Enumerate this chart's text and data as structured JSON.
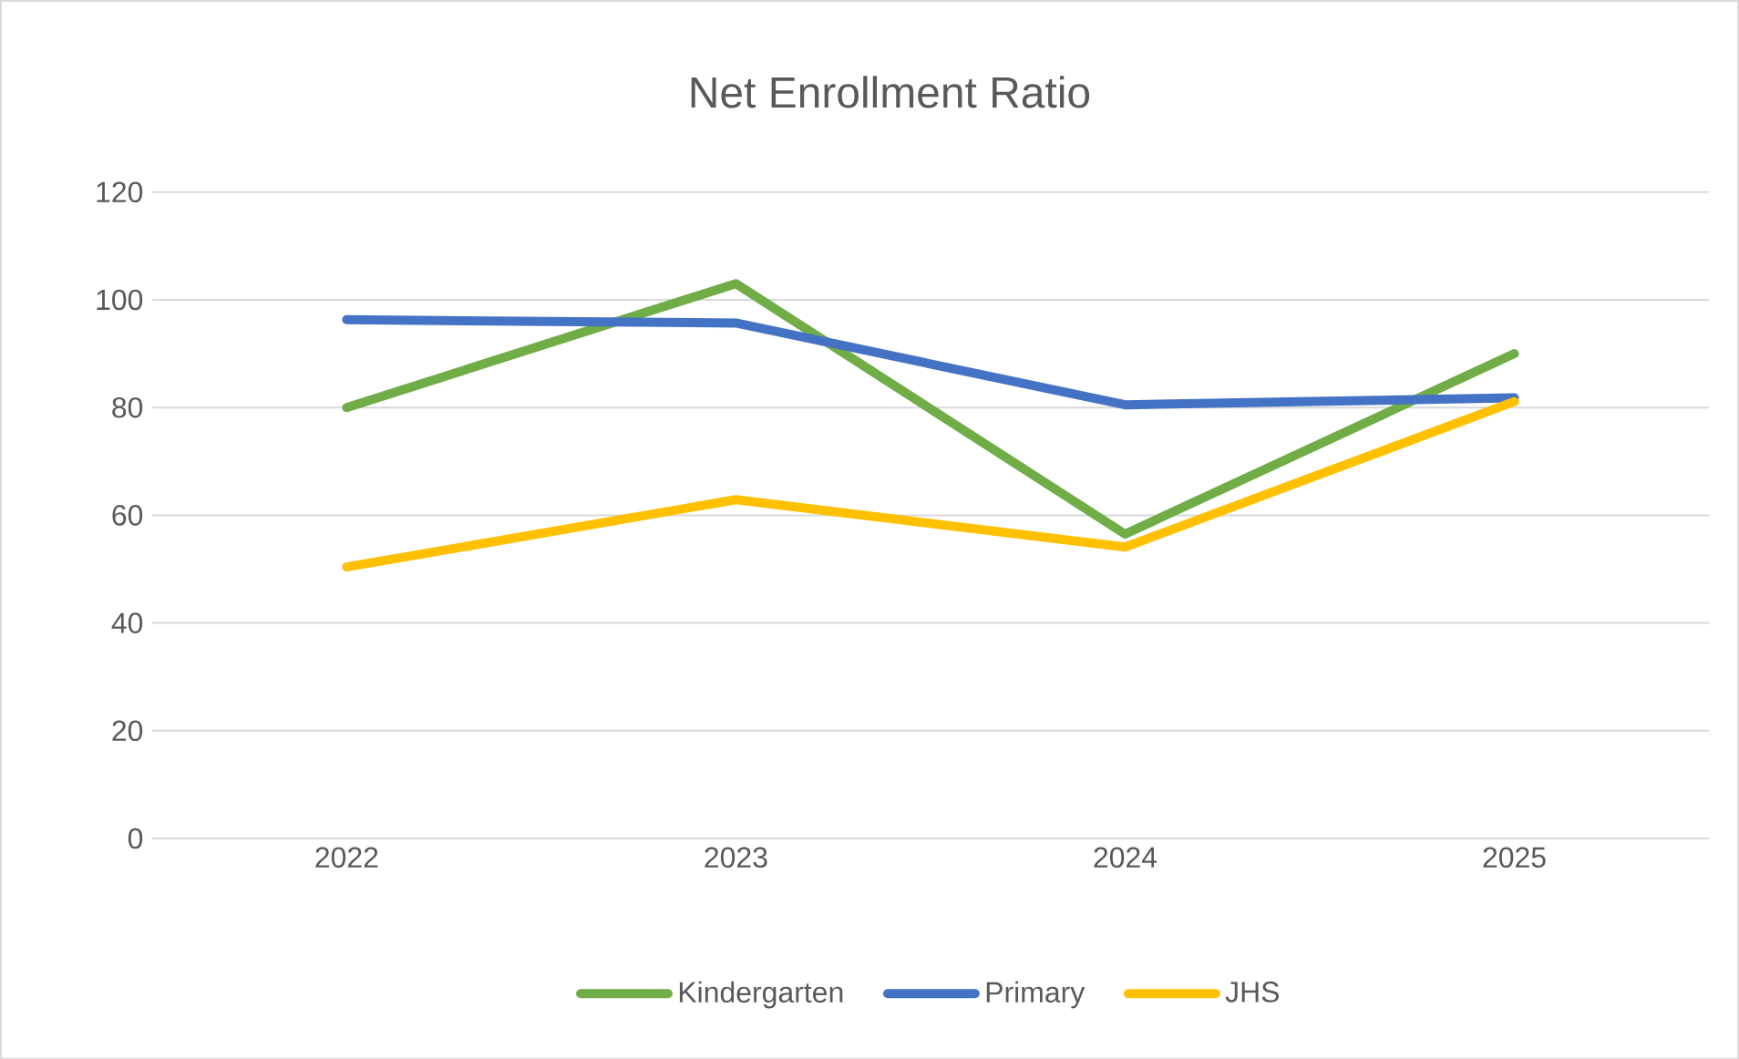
{
  "chart_data": {
    "type": "line",
    "title": "Net Enrollment Ratio",
    "categories": [
      "2022",
      "2023",
      "2024",
      "2025"
    ],
    "series": [
      {
        "name": "Kindergarten",
        "color": "#70ad47",
        "values": [
          80,
          103,
          56.5,
          90
        ]
      },
      {
        "name": "Primary",
        "color": "#4472c4",
        "values": [
          96.3,
          95.7,
          80.5,
          81.8
        ]
      },
      {
        "name": "JHS",
        "color": "#ffc000",
        "values": [
          50.4,
          62.9,
          54.1,
          81.1
        ]
      }
    ],
    "ylim": [
      0,
      120
    ],
    "yticks": [
      0,
      20,
      40,
      60,
      80,
      100,
      120
    ],
    "grid": "y",
    "legend": "bottom",
    "marker": "none",
    "line_style": "solid"
  }
}
